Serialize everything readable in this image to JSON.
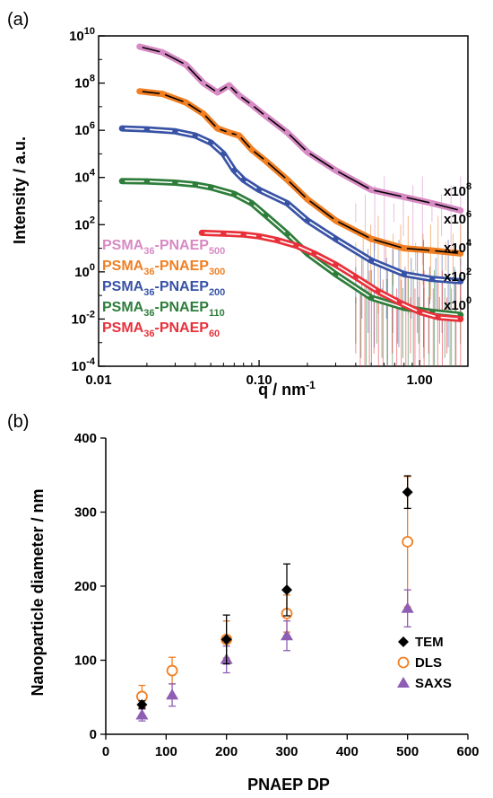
{
  "chart_data": [
    {
      "panel_label": "(a)",
      "type": "scatter",
      "xlabel": "q / nm",
      "xlabel_sup": "-1",
      "ylabel": "Intensity / a.u.",
      "xscale": "log",
      "yscale": "log",
      "xlim": [
        0.01,
        2.0
      ],
      "ylim": [
        0.0001,
        10000000000
      ],
      "x_ticks": [
        {
          "value": 0.01,
          "label": "0.01"
        },
        {
          "value": 0.1,
          "label": "0.10"
        },
        {
          "value": 1.0,
          "label": "1.00"
        }
      ],
      "y_ticks": [
        {
          "value": 0.0001,
          "base": "10",
          "exp": "-4"
        },
        {
          "value": 0.01,
          "base": "10",
          "exp": "-2"
        },
        {
          "value": 1,
          "base": "10",
          "exp": "0"
        },
        {
          "value": 100,
          "base": "10",
          "exp": "2"
        },
        {
          "value": 10000,
          "base": "10",
          "exp": "4"
        },
        {
          "value": 1000000,
          "base": "10",
          "exp": "6"
        },
        {
          "value": 100000000,
          "base": "10",
          "exp": "8"
        },
        {
          "value": 10000000000,
          "base": "10",
          "exp": "10"
        }
      ],
      "series": [
        {
          "label_main": "PSMA",
          "label_sub1": "36",
          "label_mid": "-PNAEP",
          "label_sub2": "500",
          "color": "#d78ac4",
          "fit_color": "#000000",
          "multiplier_base": "x10",
          "multiplier_exp": "8",
          "x": [
            0.018,
            0.025,
            0.035,
            0.045,
            0.055,
            0.065,
            0.075,
            0.09,
            0.11,
            0.15,
            0.2,
            0.3,
            0.5,
            0.8,
            1.2,
            1.8
          ],
          "y": [
            3500000000.0,
            2000000000.0,
            600000000.0,
            100000000.0,
            40000000.0,
            80000000.0,
            30000000.0,
            12000000.0,
            4000000.0,
            800000.0,
            120000.0,
            20000.0,
            3000.0,
            1500.0,
            800.0,
            400.0
          ]
        },
        {
          "label_main": "PSMA",
          "label_sub1": "36",
          "label_mid": "-PNAEP",
          "label_sub2": "300",
          "color": "#f07f23",
          "fit_color": "#000000",
          "multiplier_base": "x10",
          "multiplier_exp": "6",
          "x": [
            0.018,
            0.025,
            0.035,
            0.045,
            0.055,
            0.065,
            0.075,
            0.09,
            0.11,
            0.15,
            0.2,
            0.3,
            0.5,
            0.8,
            1.2,
            1.8
          ],
          "y": [
            45000000.0,
            35000000.0,
            15000000.0,
            5000000.0,
            1200000.0,
            800000.0,
            600000.0,
            150000.0,
            50000.0,
            8000.0,
            1200.0,
            150.0,
            25,
            10,
            8,
            6
          ]
        },
        {
          "label_main": "PSMA",
          "label_sub1": "36",
          "label_mid": "-PNAEP",
          "label_sub2": "200",
          "color": "#3853a6",
          "fit_color": "#ffffff",
          "multiplier_base": "x10",
          "multiplier_exp": "4",
          "x": [
            0.014,
            0.02,
            0.03,
            0.04,
            0.05,
            0.06,
            0.07,
            0.08,
            0.1,
            0.15,
            0.2,
            0.3,
            0.5,
            0.8,
            1.2,
            1.8
          ],
          "y": [
            1200000.0,
            1100000.0,
            900000.0,
            600000.0,
            300000.0,
            100000.0,
            20000.0,
            8000.0,
            3000.0,
            800.0,
            150.0,
            25,
            3,
            0.8,
            0.5,
            0.4
          ]
        },
        {
          "label_main": "PSMA",
          "label_sub1": "36",
          "label_mid": "-PNAEP",
          "label_sub2": "110",
          "color": "#2e7d3a",
          "fit_color": "#ffffff",
          "multiplier_base": "x10",
          "multiplier_exp": "2",
          "x": [
            0.014,
            0.02,
            0.03,
            0.04,
            0.05,
            0.07,
            0.09,
            0.11,
            0.15,
            0.2,
            0.3,
            0.5,
            0.8,
            1.2,
            1.8
          ],
          "y": [
            7000.0,
            6800.0,
            6000.0,
            5000.0,
            3800.0,
            2000.0,
            800.0,
            250.0,
            40,
            6,
            0.8,
            0.08,
            0.03,
            0.02,
            0.015
          ]
        },
        {
          "label_main": "PSMA",
          "label_sub1": "36",
          "label_mid": "-PNAEP",
          "label_sub2": "60",
          "color": "#e8303a",
          "fit_color": "#ffffff",
          "multiplier_base": "x10",
          "multiplier_exp": "0",
          "x": [
            0.044,
            0.06,
            0.08,
            0.1,
            0.13,
            0.17,
            0.22,
            0.3,
            0.4,
            0.55,
            0.75,
            1.0,
            1.3,
            1.8
          ],
          "y": [
            45,
            42,
            38,
            32,
            22,
            13,
            6,
            2.0,
            0.6,
            0.15,
            0.05,
            0.02,
            0.012,
            0.01
          ]
        }
      ]
    },
    {
      "panel_label": "(b)",
      "type": "scatter",
      "xlabel": "PNAEP DP",
      "ylabel": "Nanoparticle diameter / nm",
      "xlim": [
        0,
        600
      ],
      "ylim": [
        0,
        400
      ],
      "x_ticks": [
        "0",
        "100",
        "200",
        "300",
        "400",
        "500",
        "600"
      ],
      "y_ticks": [
        "0",
        "100",
        "200",
        "300",
        "400"
      ],
      "legend_position": "bottom-right",
      "series": [
        {
          "name": "TEM",
          "color": "#000000",
          "marker": "diamond",
          "x": [
            60,
            200,
            300,
            500
          ],
          "y": [
            40,
            128,
            195,
            327
          ],
          "err": [
            5,
            33,
            35,
            22
          ]
        },
        {
          "name": "DLS",
          "color": "#f07f23",
          "marker": "circle-open",
          "x": [
            60,
            110,
            200,
            300,
            500
          ],
          "y": [
            51,
            86,
            128,
            163,
            260
          ],
          "err": [
            15,
            18,
            25,
            25,
            88
          ]
        },
        {
          "name": "SAXS",
          "color": "#8e5db4",
          "marker": "triangle",
          "x": [
            60,
            110,
            200,
            300,
            500
          ],
          "y": [
            26,
            53,
            101,
            133,
            170
          ],
          "err": [
            8,
            15,
            18,
            20,
            25
          ]
        }
      ]
    }
  ]
}
